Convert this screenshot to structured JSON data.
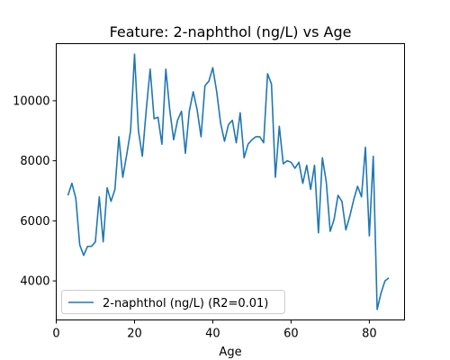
{
  "chart_data": {
    "type": "line",
    "title": "Feature: 2-naphthol (ng/L) vs Age",
    "xlabel": "Age",
    "ylabel": "",
    "xlim": [
      0,
      89
    ],
    "ylim": [
      2700,
      11900
    ],
    "xticks": [
      0,
      20,
      40,
      60,
      80
    ],
    "yticks": [
      4000,
      6000,
      8000,
      10000
    ],
    "grid": false,
    "legend_position": "lower-left",
    "series": [
      {
        "name": "2-naphthol (ng/L) (R2=0.01)",
        "color": "#1f77b4",
        "x": [
          3,
          4,
          5,
          6,
          7,
          8,
          9,
          10,
          11,
          12,
          13,
          14,
          15,
          16,
          17,
          18,
          19,
          20,
          21,
          22,
          23,
          24,
          25,
          26,
          27,
          28,
          29,
          30,
          31,
          32,
          33,
          34,
          35,
          36,
          37,
          38,
          39,
          40,
          41,
          42,
          43,
          44,
          45,
          46,
          47,
          48,
          49,
          50,
          51,
          52,
          53,
          54,
          55,
          56,
          57,
          58,
          59,
          60,
          61,
          62,
          63,
          64,
          65,
          66,
          67,
          68,
          69,
          70,
          71,
          72,
          73,
          74,
          75,
          76,
          77,
          78,
          79,
          80,
          81,
          82,
          83,
          84,
          85
        ],
        "y": [
          6850,
          7250,
          6750,
          5200,
          4850,
          5150,
          5150,
          5300,
          6800,
          5300,
          7100,
          6650,
          7050,
          8800,
          7450,
          8200,
          9000,
          11550,
          9000,
          8150,
          9700,
          11050,
          9400,
          9450,
          8550,
          11050,
          9700,
          8700,
          9350,
          9650,
          8250,
          9650,
          10300,
          9700,
          8800,
          10500,
          10650,
          11100,
          10300,
          9250,
          8650,
          9200,
          9350,
          8600,
          9600,
          8100,
          8550,
          8700,
          8800,
          8800,
          8600,
          10900,
          10550,
          7450,
          9150,
          7900,
          8000,
          7950,
          7750,
          7950,
          7250,
          7850,
          7050,
          7850,
          5600,
          8100,
          7300,
          5650,
          6050,
          6850,
          6650,
          5700,
          6150,
          6700,
          7150,
          6800,
          8450,
          5500,
          8150,
          3050,
          3600,
          4000,
          4100
        ]
      }
    ]
  }
}
